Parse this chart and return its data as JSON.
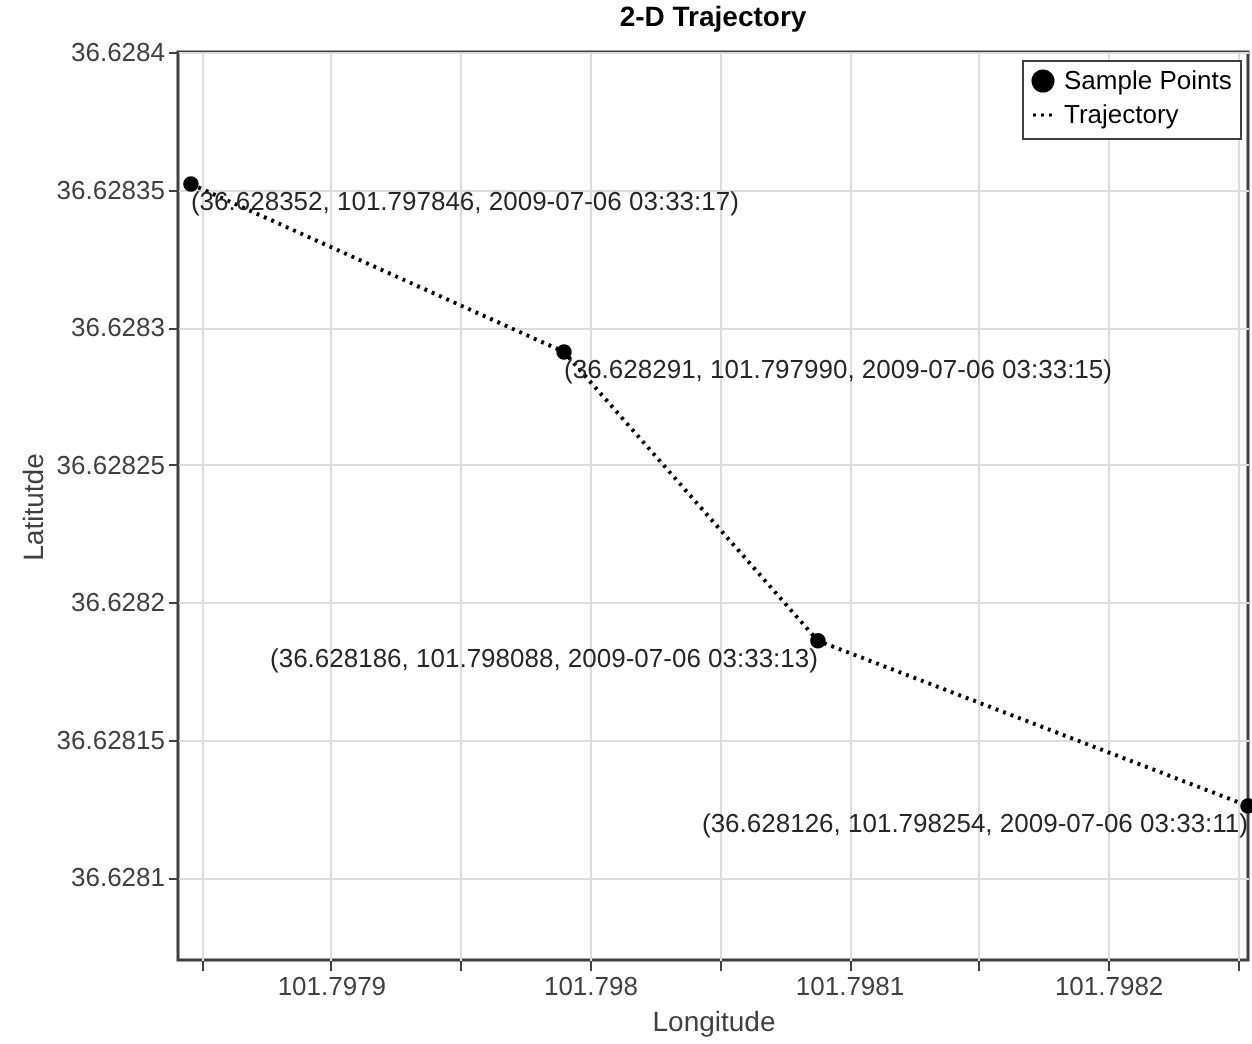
{
  "chart_data": {
    "type": "scatter",
    "title": "2-D Trajectory",
    "xlabel": "Longitude",
    "ylabel": "Latitutde",
    "x": [
      101.797846,
      101.79799,
      101.798088,
      101.798254
    ],
    "series": [
      {
        "name": "Sample Points",
        "type": "scatter",
        "color": "#000000",
        "marker": "circle",
        "values": [
          36.628352,
          36.628291,
          36.628186,
          36.628126
        ]
      },
      {
        "name": "Trajectory",
        "type": "line",
        "color": "#000000",
        "line_style": "dotted",
        "values": [
          36.628352,
          36.628291,
          36.628186,
          36.628126
        ]
      }
    ],
    "annotations": [
      {
        "text": "(36.628352, 101.797846, 2009-07-06 03:33:17)",
        "x": 101.797846,
        "y": 36.628352
      },
      {
        "text": "(36.628291, 101.797990, 2009-07-06 03:33:15)",
        "x": 101.79799,
        "y": 36.628291
      },
      {
        "text": "(36.628186, 101.798088, 2009-07-06 03:33:13)",
        "x": 101.798088,
        "y": 36.628186
      },
      {
        "text": "(36.628126, 101.798254, 2009-07-06 03:33:11)",
        "x": 101.798254,
        "y": 36.628126
      }
    ],
    "xlim": [
      101.797841,
      101.798254
    ],
    "xticks": [
      {
        "value": 101.79785,
        "label": null
      },
      101.7979,
      {
        "value": 101.79795,
        "label": null
      },
      101.798,
      {
        "value": 101.79805,
        "label": null
      },
      101.7981,
      {
        "value": 101.79815,
        "label": null
      },
      101.7982,
      {
        "value": 101.79825,
        "label": null
      }
    ],
    "ylim": [
      36.62807,
      36.6284
    ],
    "yticks": [
      36.6281,
      36.62815,
      36.6282,
      36.62825,
      36.6283,
      36.62835,
      36.6284
    ],
    "grid": true,
    "legend": "top right"
  }
}
